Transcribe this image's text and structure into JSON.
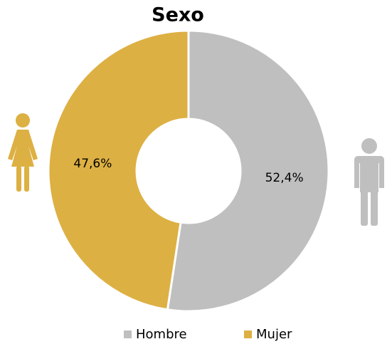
{
  "chart_data": {
    "type": "donut",
    "title": "Sexo",
    "categories": [
      "Hombre",
      "Mujer"
    ],
    "values": [
      52.4,
      47.6
    ],
    "value_labels": [
      "52,4%",
      "47,6%"
    ],
    "colors": [
      "#bfbfbf",
      "#ddb043"
    ],
    "legend": "bottom"
  }
}
